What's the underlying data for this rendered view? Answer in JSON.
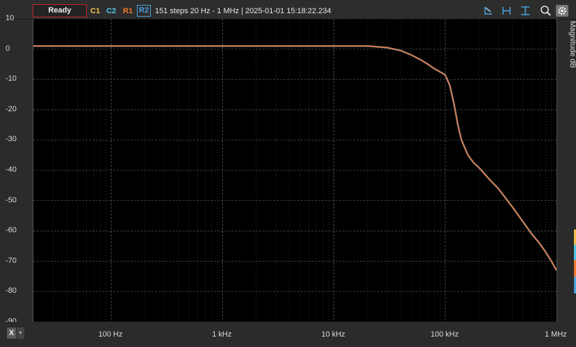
{
  "toolbar": {
    "status_button": "Ready",
    "channels": [
      {
        "label": "C1",
        "color": "#f2c04a"
      },
      {
        "label": "C2",
        "color": "#4ec6e8"
      },
      {
        "label": "R1",
        "color": "#f2782a"
      },
      {
        "label": "R2",
        "color": "#4aa3df"
      }
    ],
    "sweep_info": "151 steps  20 Hz - 1 MHz | 2025-01-01 15:18:22.234",
    "tools": [
      "cursor-icon",
      "h-cursor-icon",
      "v-cursor-icon",
      "zoom-icon",
      "gear-icon"
    ]
  },
  "colors": {
    "trace": "#e4763a",
    "trace_alt": "#4aa3df",
    "grid": "#4a4a4a"
  },
  "axis": {
    "x_control_label": "X",
    "x_control_arrow": "▾"
  },
  "chart_data": {
    "type": "line",
    "title": "",
    "xlabel": "",
    "ylabel": "Magnitude dB",
    "xscale": "log",
    "xlim": [
      20,
      1000000
    ],
    "ylim": [
      -90,
      10
    ],
    "yticks": [
      10,
      0,
      -10,
      -20,
      -30,
      -40,
      -50,
      -60,
      -70,
      -80,
      -90
    ],
    "xtick_labels": [
      {
        "value": 100,
        "label": "100 Hz"
      },
      {
        "value": 1000,
        "label": "1 kHz"
      },
      {
        "value": 10000,
        "label": "10 kHz"
      },
      {
        "value": 100000,
        "label": "100 kHz"
      },
      {
        "value": 1000000,
        "label": "1 MHz"
      }
    ],
    "grid": true,
    "series": [
      {
        "x": [
          20,
          100,
          1000,
          10000,
          20000,
          30000,
          40000,
          50000,
          60000,
          70000,
          80000,
          90000,
          100000,
          110000,
          120000,
          130000,
          140000,
          160000,
          180000,
          200000,
          250000,
          300000,
          400000,
          500000,
          600000,
          700000,
          800000,
          900000,
          1000000
        ],
        "y": [
          1,
          1,
          1,
          1,
          1,
          0.5,
          -0.5,
          -2,
          -3.5,
          -5,
          -6.5,
          -7.5,
          -8.5,
          -12,
          -18,
          -25,
          -30,
          -35,
          -37.5,
          -39,
          -43,
          -46,
          -52,
          -57,
          -61,
          -64,
          -67,
          -70,
          -73
        ]
      }
    ]
  }
}
